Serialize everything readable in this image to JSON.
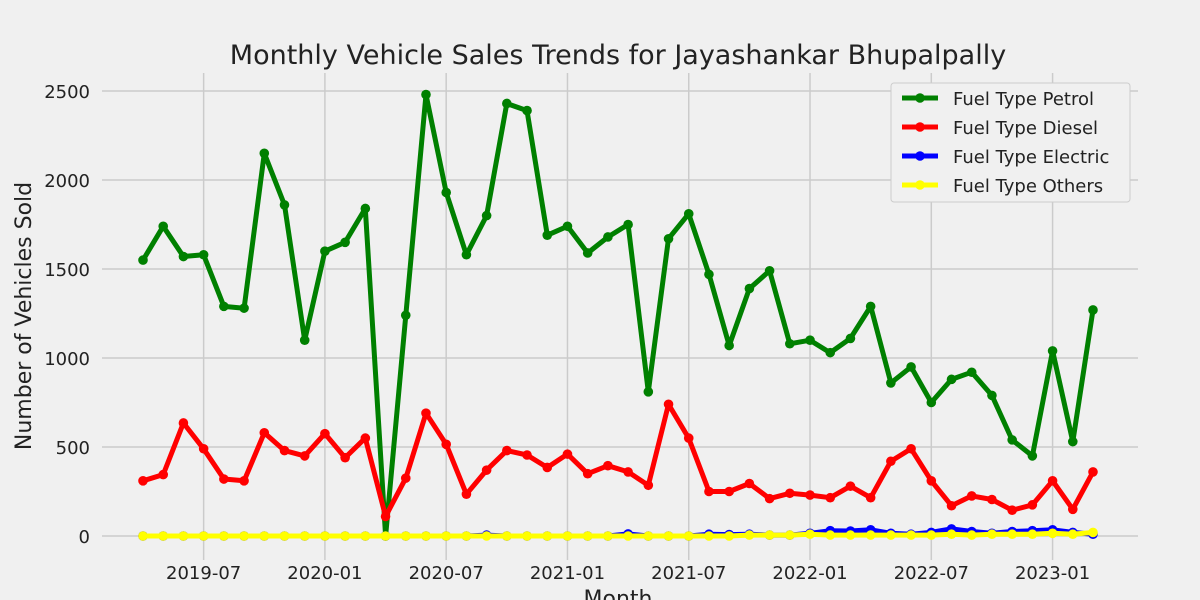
{
  "chart_data": {
    "type": "line",
    "title": "Monthly Vehicle Sales Trends for Jayashankar Bhupalpally",
    "xlabel": "Month",
    "ylabel": "Number of Vehicles Sold",
    "x_start": "2019-04",
    "x": [
      "2019-04",
      "2019-05",
      "2019-06",
      "2019-07",
      "2019-08",
      "2019-09",
      "2019-10",
      "2019-11",
      "2019-12",
      "2020-01",
      "2020-02",
      "2020-03",
      "2020-04",
      "2020-05",
      "2020-06",
      "2020-07",
      "2020-08",
      "2020-09",
      "2020-10",
      "2020-11",
      "2020-12",
      "2021-01",
      "2021-02",
      "2021-03",
      "2021-04",
      "2021-05",
      "2021-06",
      "2021-07",
      "2021-08",
      "2021-09",
      "2021-10",
      "2021-11",
      "2021-12",
      "2022-01",
      "2022-02",
      "2022-03",
      "2022-04",
      "2022-05",
      "2022-06",
      "2022-07",
      "2022-08",
      "2022-09",
      "2022-10",
      "2022-11",
      "2022-12",
      "2023-01",
      "2023-02",
      "2023-03"
    ],
    "x_ticks": [
      "2019-07",
      "2020-01",
      "2020-07",
      "2021-01",
      "2021-07",
      "2022-01",
      "2022-07",
      "2023-01"
    ],
    "y_ticks": [
      0,
      500,
      1000,
      1500,
      2000,
      2500
    ],
    "ylim": [
      -80,
      2600
    ],
    "grid": true,
    "legend_position": "top-right",
    "series": [
      {
        "name": "Fuel Type Petrol",
        "color": "#008000",
        "values": [
          1550,
          1740,
          1570,
          1580,
          1290,
          1280,
          2150,
          1860,
          1100,
          1600,
          1650,
          1840,
          0,
          1240,
          2480,
          1930,
          1580,
          1800,
          2430,
          2390,
          1690,
          1740,
          1590,
          1680,
          1750,
          810,
          1670,
          1810,
          1470,
          1070,
          1390,
          1490,
          1080,
          1100,
          1030,
          1110,
          1290,
          860,
          950,
          750,
          880,
          920,
          790,
          540,
          450,
          1040,
          530,
          1270
        ]
      },
      {
        "name": "Fuel Type Diesel",
        "color": "#ff0000",
        "values": [
          310,
          345,
          635,
          490,
          320,
          310,
          580,
          480,
          450,
          575,
          440,
          550,
          110,
          325,
          690,
          515,
          235,
          370,
          480,
          455,
          385,
          460,
          350,
          395,
          360,
          285,
          740,
          550,
          250,
          250,
          295,
          210,
          240,
          230,
          215,
          280,
          215,
          420,
          490,
          310,
          170,
          225,
          205,
          145,
          175,
          310,
          150,
          360
        ]
      },
      {
        "name": "Fuel Type Electric",
        "color": "#0000ff",
        "values": [
          0,
          0,
          0,
          0,
          0,
          0,
          0,
          0,
          0,
          0,
          0,
          0,
          0,
          0,
          0,
          0,
          0,
          5,
          0,
          0,
          0,
          0,
          0,
          0,
          12,
          0,
          0,
          0,
          10,
          8,
          10,
          5,
          5,
          15,
          30,
          28,
          35,
          15,
          10,
          20,
          40,
          25,
          15,
          25,
          30,
          35,
          20,
          10
        ]
      },
      {
        "name": "Fuel Type Others",
        "color": "#ffff00",
        "values": [
          0,
          0,
          0,
          0,
          0,
          0,
          0,
          0,
          0,
          0,
          0,
          0,
          0,
          0,
          0,
          0,
          0,
          0,
          0,
          0,
          0,
          0,
          0,
          0,
          0,
          0,
          0,
          0,
          0,
          0,
          5,
          5,
          5,
          10,
          5,
          5,
          5,
          5,
          5,
          5,
          10,
          5,
          10,
          10,
          10,
          15,
          10,
          20
        ]
      }
    ]
  }
}
